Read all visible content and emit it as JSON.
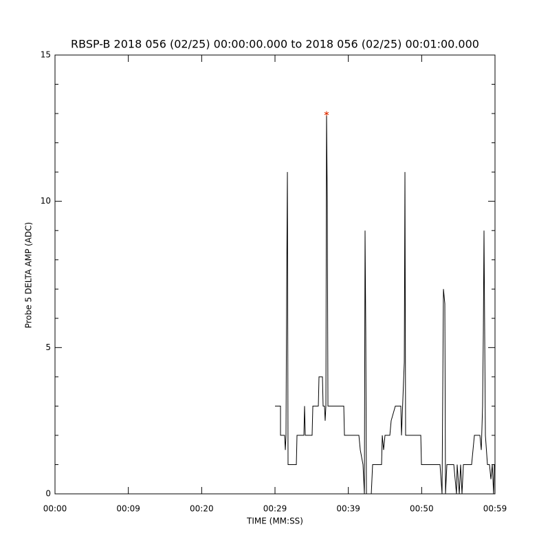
{
  "chart_data": {
    "type": "line",
    "title": "RBSP-B 2018 056 (02/25) 00:00:00.000 to 2018 056 (02/25) 00:01:00.000",
    "xlabel": "TIME (MM:SS)",
    "ylabel": "Probe 5 DELTA AMP (ADC)",
    "xlim": [
      0,
      60
    ],
    "ylim": [
      0,
      15
    ],
    "xticks": [
      {
        "value": 0,
        "label": "00:00"
      },
      {
        "value": 10,
        "label": "00:09"
      },
      {
        "value": 20,
        "label": "00:20"
      },
      {
        "value": 30,
        "label": "00:29"
      },
      {
        "value": 40,
        "label": "00:39"
      },
      {
        "value": 50,
        "label": "00:50"
      },
      {
        "value": 60,
        "label": "00:59"
      }
    ],
    "yticks": [
      0,
      5,
      10,
      15
    ],
    "yminorticks": [
      1,
      2,
      3,
      4,
      6,
      7,
      8,
      9,
      11,
      12,
      13,
      14
    ],
    "series": [
      {
        "color": "#000000",
        "x": [
          30,
          30.75,
          30.75,
          31.31,
          31.41,
          31.5,
          31.59,
          31.69,
          31.78,
          32.91,
          33,
          33.94,
          34.03,
          34.13,
          35.06,
          35.16,
          35.91,
          36,
          36.47,
          36.56,
          36.75,
          36.84,
          36.94,
          37.03,
          37.13,
          37.22,
          39.38,
          39.47,
          41.44,
          41.63,
          42,
          42.19,
          42.28,
          42.38,
          42.47,
          43.13,
          43.31,
          44.53,
          44.63,
          44.81,
          45,
          45.66,
          45.84,
          46.41,
          47.16,
          47.25,
          47.63,
          47.72,
          47.81,
          49.88,
          49.97,
          52.5,
          52.78,
          52.97,
          53.16,
          53.25,
          53.44,
          54.38,
          54.75,
          54.84,
          55.13,
          55.31,
          55.5,
          55.69,
          56.81,
          57,
          57.19,
          57.94,
          58.13,
          58.31,
          58.41,
          58.5,
          58.69,
          58.97,
          59.25,
          59.44,
          59.63,
          59.81,
          59.91,
          60
        ],
        "values": [
          3,
          3,
          2,
          2,
          1.5,
          2,
          7,
          11,
          1,
          1,
          2,
          2,
          3,
          2,
          2,
          3,
          3,
          4,
          4,
          3,
          3,
          2.5,
          3,
          13,
          10,
          3,
          3,
          2,
          2,
          1.5,
          1,
          0,
          9,
          5.5,
          0,
          0,
          1,
          1,
          2,
          1.5,
          2,
          2,
          2.5,
          3,
          3,
          2,
          4.5,
          11,
          2,
          2,
          1,
          1,
          0,
          7,
          6.5,
          0,
          1,
          1,
          0,
          1,
          0,
          1,
          0,
          1,
          1,
          1.5,
          2,
          2,
          1.5,
          3,
          5.5,
          9,
          2,
          1,
          1,
          0.5,
          1,
          0,
          1,
          1
        ]
      }
    ],
    "max_marker": {
      "x": 37.03,
      "y": 13,
      "color": "#e03000"
    }
  }
}
